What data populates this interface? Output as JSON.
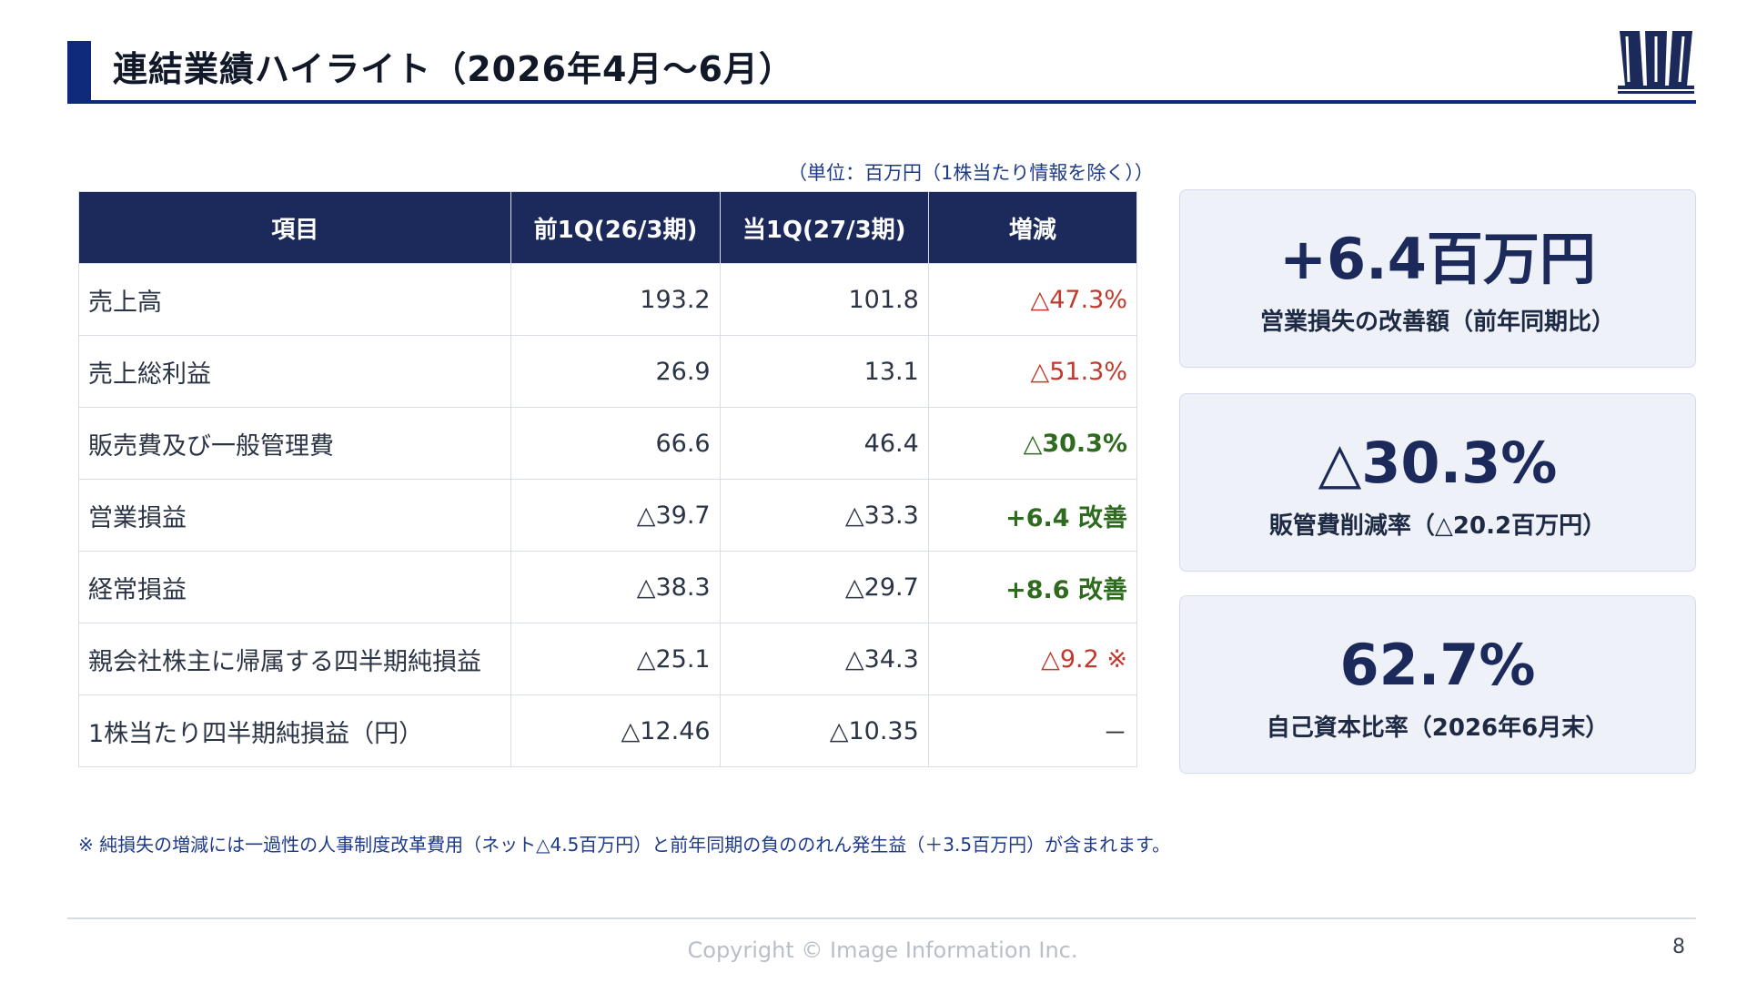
{
  "header": {
    "title": "連結業績ハイライト（2026年4月～6月）",
    "logo_icon": "company-logo-icon"
  },
  "unit_note": "（単位：百万円（1株当たり情報を除く））",
  "table": {
    "headers": [
      "項目",
      "前1Q(26/3期)",
      "当1Q(27/3期)",
      "増減"
    ],
    "rows": [
      {
        "label": "売上高",
        "prev": "193.2",
        "curr": "101.8",
        "change": "△47.3%",
        "change_color": "red"
      },
      {
        "label": "売上総利益",
        "prev": "26.9",
        "curr": "13.1",
        "change": "△51.3%",
        "change_color": "red"
      },
      {
        "label": "販売費及び一般管理費",
        "prev": "66.6",
        "curr": "46.4",
        "change": "△30.3%",
        "change_color": "green"
      },
      {
        "label": "営業損益",
        "prev": "△39.7",
        "curr": "△33.3",
        "change": "+6.4 改善",
        "change_color": "green"
      },
      {
        "label": "経常損益",
        "prev": "△38.3",
        "curr": "△29.7",
        "change": "+8.6 改善",
        "change_color": "green"
      },
      {
        "label": "親会社株主に帰属する四半期純損益",
        "prev": "△25.1",
        "curr": "△34.3",
        "change": "△9.2 ※",
        "change_color": "red"
      },
      {
        "label": "1株当たり四半期純損益（円）",
        "prev": "△12.46",
        "curr": "△10.35",
        "change": "－",
        "change_color": "dark"
      }
    ]
  },
  "cards": [
    {
      "big": "+6.4百万円",
      "caption": "営業損失の改善額（前年同期比）"
    },
    {
      "big": "△30.3%",
      "caption": "販管費削減率（△20.2百万円）"
    },
    {
      "big": "62.7%",
      "caption": "自己資本比率（2026年6月末）"
    }
  ],
  "footnote": "※ 純損失の増減には一過性の人事制度改革費用（ネット△4.5百万円）と前年同期の負ののれん発生益（＋3.5百万円）が含まれます。",
  "footer": {
    "copyright": "Copyright © Image Information Inc.",
    "page_number": "8"
  },
  "colors": {
    "accent": "#0f2a7a",
    "table_header": "#1b2a5a",
    "negative": "#c0392b",
    "positive": "#2e6b1e",
    "card_bg": "#eef2f8"
  }
}
